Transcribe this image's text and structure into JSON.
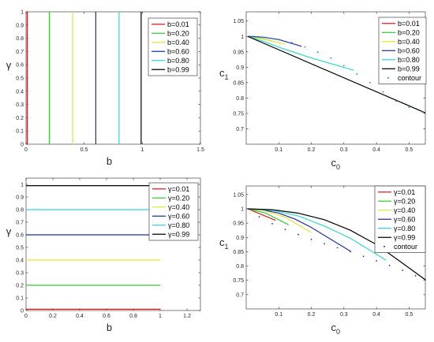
{
  "chart_data": [
    {
      "type": "line",
      "xlabel": "b",
      "ylabel": "γ",
      "xlim": [
        0,
        1.5
      ],
      "ylim": [
        0,
        1
      ],
      "xticks": [
        "0",
        "0.5",
        "1",
        "1.5"
      ],
      "yticks": [
        "0",
        "0.1",
        "0.2",
        "0.3",
        "0.4",
        "0.5",
        "0.6",
        "0.7",
        "0.8",
        "0.9",
        "1"
      ],
      "legend_position": "top-right",
      "grid": false,
      "series": [
        {
          "name": "b=0.01",
          "color": "#e41a1c",
          "x": [
            0.01,
            0.01
          ],
          "y": [
            0,
            1
          ]
        },
        {
          "name": "b=0.20",
          "color": "#33cc33",
          "x": [
            0.2,
            0.2
          ],
          "y": [
            0,
            1
          ]
        },
        {
          "name": "b=0.40",
          "color": "#e6e633",
          "x": [
            0.4,
            0.4
          ],
          "y": [
            0,
            1
          ]
        },
        {
          "name": "b=0.60",
          "color": "#1f2fa8",
          "x": [
            0.6,
            0.6
          ],
          "y": [
            0,
            1
          ]
        },
        {
          "name": "b=0.80",
          "color": "#33d6cc",
          "x": [
            0.8,
            0.8
          ],
          "y": [
            0,
            1
          ]
        },
        {
          "name": "b=0.99",
          "color": "#000000",
          "x": [
            0.99,
            0.99
          ],
          "y": [
            0,
            1
          ]
        }
      ]
    },
    {
      "type": "line",
      "xlabel": "c0",
      "ylabel": "c1",
      "xlim": [
        0,
        0.55
      ],
      "ylim": [
        0.65,
        1.08
      ],
      "xticks": [
        "0.1",
        "0.2",
        "0.3",
        "0.4",
        "0.5"
      ],
      "yticks": [
        "0.7",
        "0.75",
        "0.8",
        "0.85",
        "0.9",
        "0.95",
        "1",
        "1.05"
      ],
      "legend_position": "top-right",
      "grid": false,
      "series": [
        {
          "name": "b=0.01",
          "color": "#e41a1c",
          "x": [
            0.005,
            0.01
          ],
          "y": [
            1.0,
            0.999
          ]
        },
        {
          "name": "b=0.20",
          "color": "#33cc33",
          "x": [
            0.005,
            0.05,
            0.08
          ],
          "y": [
            1.0,
            0.993,
            0.985
          ]
        },
        {
          "name": "b=0.40",
          "color": "#e6e633",
          "x": [
            0.005,
            0.06,
            0.12
          ],
          "y": [
            1.0,
            0.99,
            0.975
          ]
        },
        {
          "name": "b=0.60",
          "color": "#1f2fa8",
          "x": [
            0.005,
            0.05,
            0.1,
            0.17
          ],
          "y": [
            1.0,
            0.998,
            0.99,
            0.968
          ]
        },
        {
          "name": "b=0.80",
          "color": "#33d6cc",
          "x": [
            0.005,
            0.05,
            0.1,
            0.2,
            0.33
          ],
          "y": [
            1.0,
            0.985,
            0.965,
            0.93,
            0.89
          ]
        },
        {
          "name": "b=0.99",
          "color": "#000000",
          "x": [
            0.005,
            0.55
          ],
          "y": [
            1.0,
            0.752
          ]
        },
        {
          "name": "contour",
          "color": "#1a8c99",
          "style": "dots",
          "x": [
            0.02,
            0.06,
            0.1,
            0.14,
            0.18,
            0.22,
            0.26,
            0.3,
            0.34,
            0.38,
            0.42,
            0.46,
            0.5,
            0.54
          ],
          "y": [
            1.0,
            0.997,
            0.99,
            0.98,
            0.966,
            0.949,
            0.93,
            0.905,
            0.878,
            0.85,
            0.82,
            0.79,
            0.77,
            0.755
          ]
        }
      ]
    },
    {
      "type": "line",
      "xlabel": "b",
      "ylabel": "γ",
      "xlim": [
        0,
        1.3
      ],
      "ylim": [
        0,
        1.05
      ],
      "xticks": [
        "0",
        "0.2",
        "0.4",
        "0.6",
        "0.8",
        "1",
        "1.2"
      ],
      "yticks": [
        "0",
        "0.1",
        "0.2",
        "0.3",
        "0.4",
        "0.5",
        "0.6",
        "0.7",
        "0.8",
        "0.9",
        "1"
      ],
      "legend_position": "top-right",
      "grid": false,
      "series": [
        {
          "name": "γ=0.01",
          "color": "#e41a1c",
          "x": [
            0,
            1
          ],
          "y": [
            0.01,
            0.01
          ]
        },
        {
          "name": "γ=0.20",
          "color": "#33cc33",
          "x": [
            0,
            1
          ],
          "y": [
            0.2,
            0.2
          ]
        },
        {
          "name": "γ=0.40",
          "color": "#e6e633",
          "x": [
            0,
            1
          ],
          "y": [
            0.4,
            0.4
          ]
        },
        {
          "name": "γ=0.60",
          "color": "#1f2fa8",
          "x": [
            0,
            1
          ],
          "y": [
            0.6,
            0.6
          ]
        },
        {
          "name": "γ=0.80",
          "color": "#33d6cc",
          "x": [
            0,
            1
          ],
          "y": [
            0.8,
            0.8
          ]
        },
        {
          "name": "γ=0.99",
          "color": "#000000",
          "x": [
            0,
            1
          ],
          "y": [
            0.99,
            0.99
          ]
        }
      ]
    },
    {
      "type": "line",
      "xlabel": "c0",
      "ylabel": "c1",
      "xlim": [
        0,
        0.55
      ],
      "ylim": [
        0.65,
        1.08
      ],
      "xticks": [
        "0.1",
        "0.2",
        "0.3",
        "0.4",
        "0.5"
      ],
      "yticks": [
        "0.7",
        "0.75",
        "0.8",
        "0.85",
        "0.9",
        "0.95",
        "1",
        "1.05"
      ],
      "legend_position": "top-right",
      "grid": false,
      "series": [
        {
          "name": "γ=0.01",
          "color": "#e41a1c",
          "x": [
            0.005,
            0.09
          ],
          "y": [
            1.0,
            0.96
          ]
        },
        {
          "name": "γ=0.20",
          "color": "#33cc33",
          "x": [
            0.005,
            0.06,
            0.13
          ],
          "y": [
            1.0,
            0.985,
            0.944
          ]
        },
        {
          "name": "γ=0.40",
          "color": "#e6e633",
          "x": [
            0.005,
            0.06,
            0.12,
            0.2
          ],
          "y": [
            1.0,
            0.993,
            0.97,
            0.917
          ]
        },
        {
          "name": "γ=0.60",
          "color": "#1f2fa8",
          "x": [
            0.005,
            0.05,
            0.1,
            0.15,
            0.2,
            0.25,
            0.32
          ],
          "y": [
            1.0,
            0.997,
            0.985,
            0.964,
            0.935,
            0.9,
            0.852
          ]
        },
        {
          "name": "γ=0.80",
          "color": "#33d6cc",
          "x": [
            0.005,
            0.08,
            0.16,
            0.24,
            0.32,
            0.43
          ],
          "y": [
            1.0,
            0.995,
            0.975,
            0.94,
            0.897,
            0.82
          ]
        },
        {
          "name": "γ=0.99",
          "color": "#000000",
          "x": [
            0.005,
            0.08,
            0.16,
            0.24,
            0.32,
            0.4,
            0.48,
            0.55
          ],
          "y": [
            1.0,
            0.997,
            0.985,
            0.962,
            0.925,
            0.875,
            0.81,
            0.752
          ]
        },
        {
          "name": "contour",
          "color": "#1f2fa8",
          "style": "dots",
          "x": [
            0.005,
            0.04,
            0.08,
            0.12,
            0.16,
            0.2,
            0.24,
            0.28,
            0.32,
            0.36,
            0.4,
            0.44,
            0.48,
            0.52,
            0.55
          ],
          "y": [
            1.0,
            0.972,
            0.948,
            0.928,
            0.91,
            0.893,
            0.878,
            0.864,
            0.85,
            0.834,
            0.818,
            0.802,
            0.785,
            0.766,
            0.752
          ]
        }
      ]
    }
  ]
}
